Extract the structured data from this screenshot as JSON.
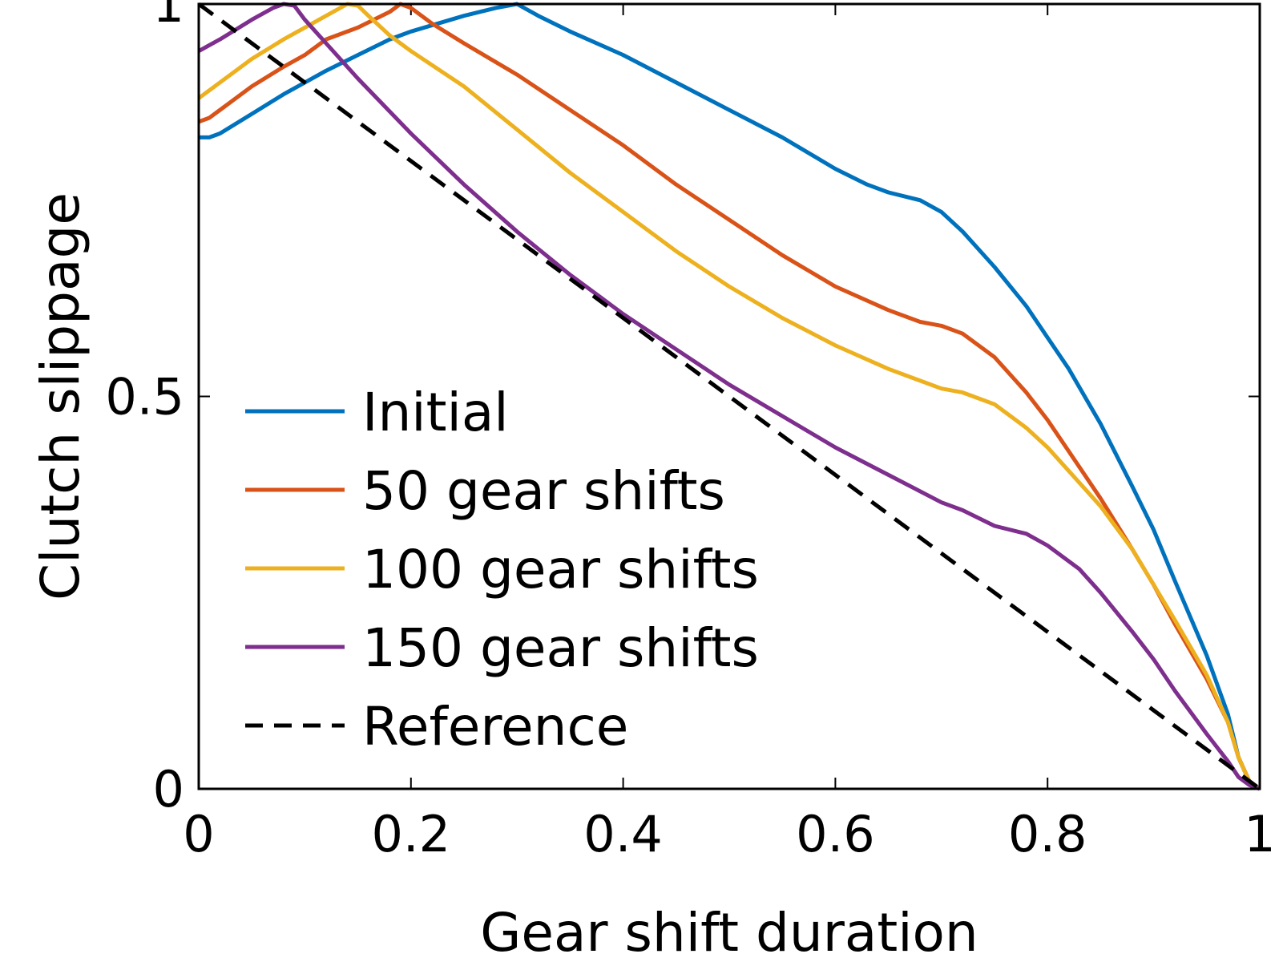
{
  "chart_data": {
    "type": "line",
    "xlabel": "Gear shift duration",
    "ylabel": "Clutch slippage",
    "xlim": [
      0,
      1
    ],
    "ylim": [
      0,
      1
    ],
    "x_ticks": [
      {
        "value": 0,
        "label": "0"
      },
      {
        "value": 0.2,
        "label": "0.2"
      },
      {
        "value": 0.4,
        "label": "0.4"
      },
      {
        "value": 0.6,
        "label": "0.6"
      },
      {
        "value": 0.8,
        "label": "0.8"
      },
      {
        "value": 1,
        "label": "1"
      }
    ],
    "y_ticks": [
      {
        "value": 0,
        "label": "0"
      },
      {
        "value": 0.5,
        "label": "0.5"
      },
      {
        "value": 1,
        "label": "1"
      }
    ],
    "grid": false,
    "legend_position": "lower-left",
    "series": [
      {
        "name": "Initial",
        "color": "#0072BD",
        "style": "solid",
        "x": [
          0,
          0.01,
          0.02,
          0.05,
          0.08,
          0.1,
          0.12,
          0.15,
          0.18,
          0.2,
          0.25,
          0.28,
          0.3,
          0.32,
          0.35,
          0.4,
          0.45,
          0.5,
          0.55,
          0.6,
          0.63,
          0.65,
          0.68,
          0.7,
          0.72,
          0.75,
          0.78,
          0.8,
          0.82,
          0.85,
          0.88,
          0.9,
          0.92,
          0.95,
          0.97,
          0.98,
          0.99,
          1.0
        ],
        "y": [
          0.83,
          0.83,
          0.835,
          0.86,
          0.885,
          0.9,
          0.915,
          0.935,
          0.955,
          0.965,
          0.985,
          0.995,
          1.0,
          0.985,
          0.965,
          0.935,
          0.9,
          0.865,
          0.83,
          0.79,
          0.77,
          0.76,
          0.75,
          0.735,
          0.71,
          0.665,
          0.615,
          0.575,
          0.535,
          0.465,
          0.385,
          0.33,
          0.265,
          0.17,
          0.095,
          0.04,
          0.01,
          0.0
        ]
      },
      {
        "name": "50 gear shifts",
        "color": "#D95319",
        "style": "solid",
        "x": [
          0,
          0.01,
          0.02,
          0.05,
          0.08,
          0.1,
          0.12,
          0.15,
          0.18,
          0.19,
          0.2,
          0.22,
          0.25,
          0.3,
          0.35,
          0.4,
          0.45,
          0.5,
          0.55,
          0.6,
          0.65,
          0.68,
          0.7,
          0.72,
          0.75,
          0.78,
          0.8,
          0.82,
          0.85,
          0.88,
          0.9,
          0.92,
          0.95,
          0.97,
          0.98,
          0.99,
          1.0
        ],
        "y": [
          0.85,
          0.855,
          0.865,
          0.895,
          0.92,
          0.935,
          0.955,
          0.97,
          0.99,
          1.0,
          0.995,
          0.975,
          0.95,
          0.91,
          0.865,
          0.82,
          0.77,
          0.725,
          0.68,
          0.64,
          0.61,
          0.595,
          0.59,
          0.58,
          0.55,
          0.505,
          0.47,
          0.43,
          0.37,
          0.305,
          0.26,
          0.21,
          0.14,
          0.085,
          0.04,
          0.01,
          0.0
        ]
      },
      {
        "name": "100 gear shifts",
        "color": "#EDB120",
        "style": "solid",
        "x": [
          0,
          0.01,
          0.02,
          0.05,
          0.08,
          0.1,
          0.12,
          0.14,
          0.15,
          0.16,
          0.18,
          0.2,
          0.25,
          0.3,
          0.35,
          0.4,
          0.45,
          0.5,
          0.55,
          0.6,
          0.65,
          0.7,
          0.72,
          0.75,
          0.78,
          0.8,
          0.85,
          0.88,
          0.9,
          0.92,
          0.95,
          0.97,
          0.98,
          0.99,
          1.0
        ],
        "y": [
          0.88,
          0.89,
          0.9,
          0.93,
          0.955,
          0.97,
          0.985,
          1.0,
          0.998,
          0.985,
          0.96,
          0.94,
          0.895,
          0.84,
          0.785,
          0.735,
          0.685,
          0.64,
          0.6,
          0.565,
          0.535,
          0.51,
          0.505,
          0.49,
          0.46,
          0.435,
          0.36,
          0.305,
          0.26,
          0.215,
          0.145,
          0.085,
          0.04,
          0.01,
          0.0
        ]
      },
      {
        "name": "150 gear shifts",
        "color": "#7E2F8E",
        "style": "solid",
        "x": [
          0,
          0.02,
          0.05,
          0.07,
          0.08,
          0.09,
          0.1,
          0.12,
          0.15,
          0.2,
          0.25,
          0.3,
          0.35,
          0.4,
          0.45,
          0.5,
          0.55,
          0.6,
          0.65,
          0.7,
          0.72,
          0.75,
          0.78,
          0.8,
          0.83,
          0.85,
          0.88,
          0.9,
          0.92,
          0.95,
          0.97,
          0.98,
          0.99,
          1.0
        ],
        "y": [
          0.94,
          0.955,
          0.98,
          0.995,
          1.0,
          0.998,
          0.98,
          0.95,
          0.905,
          0.835,
          0.77,
          0.71,
          0.655,
          0.605,
          0.56,
          0.515,
          0.475,
          0.435,
          0.4,
          0.365,
          0.355,
          0.335,
          0.325,
          0.31,
          0.28,
          0.25,
          0.2,
          0.165,
          0.125,
          0.07,
          0.035,
          0.015,
          0.005,
          0.0
        ]
      },
      {
        "name": "Reference",
        "color": "#000000",
        "style": "dashed",
        "x": [
          0,
          1
        ],
        "y": [
          1,
          0
        ]
      }
    ]
  }
}
